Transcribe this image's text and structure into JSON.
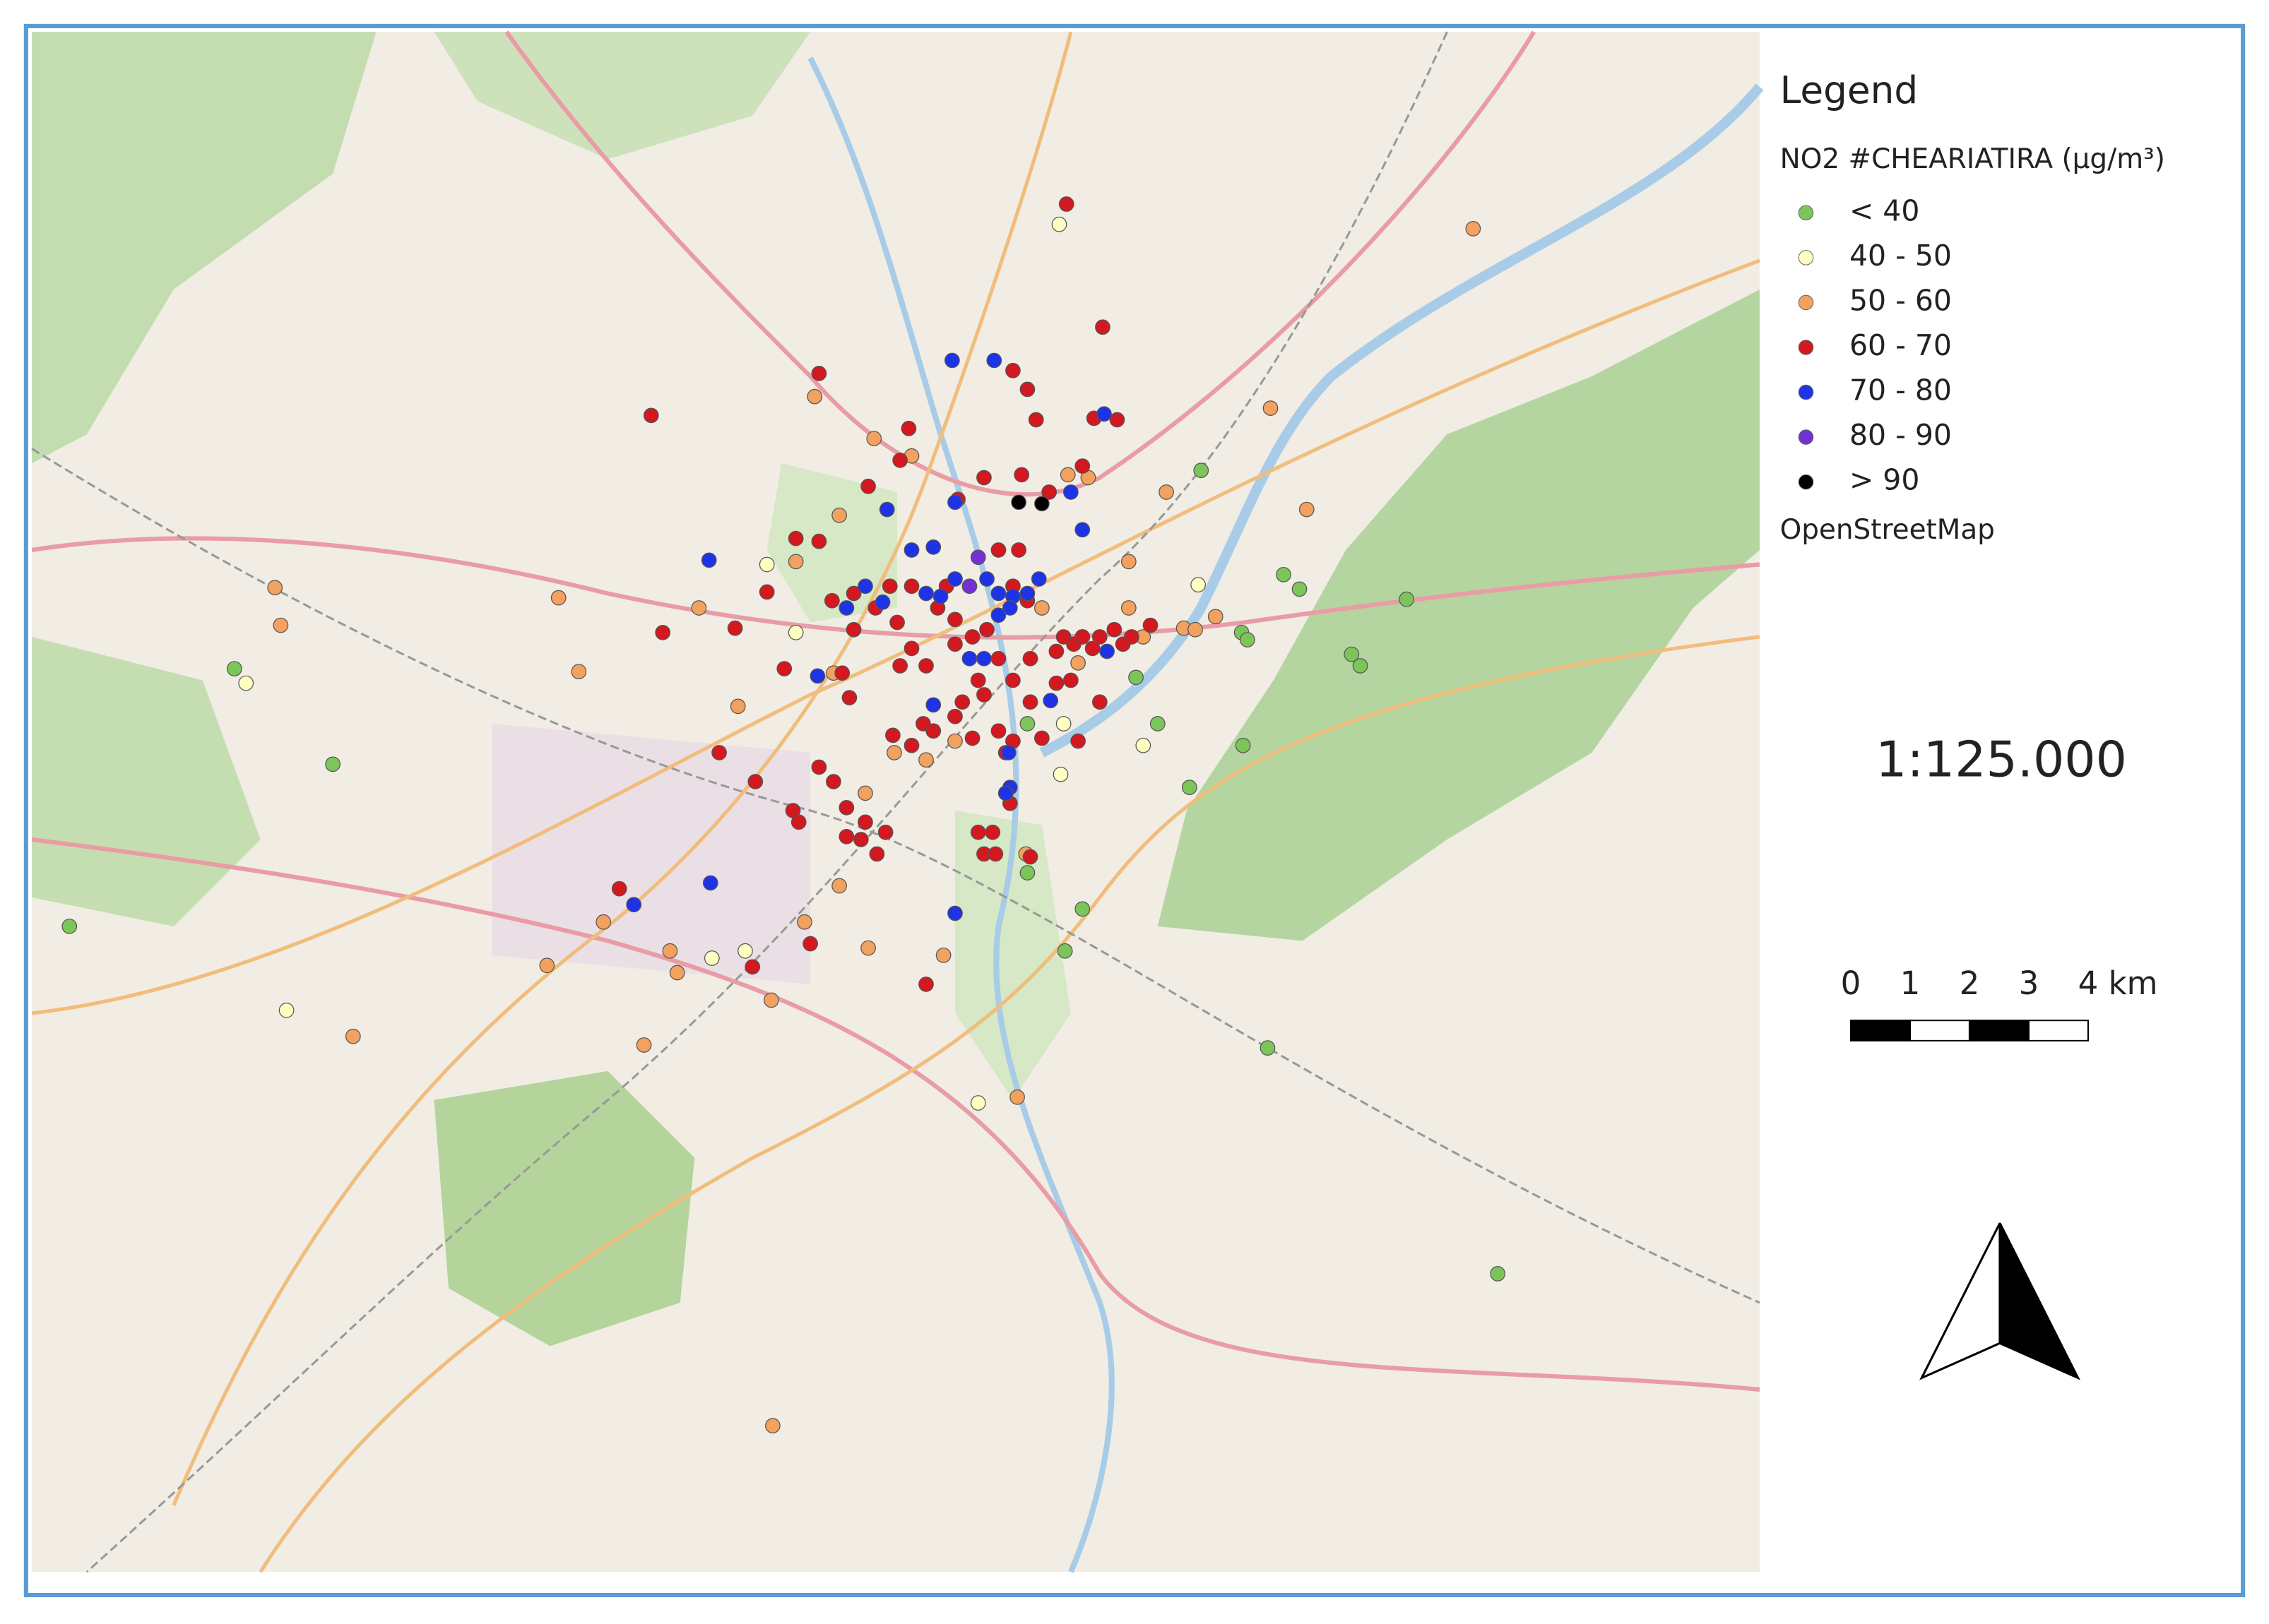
{
  "legend": {
    "title": "Legend",
    "layer_title": "NO2 #CHEARIATIRA (µg/m³)",
    "classes": [
      {
        "label": "< 40",
        "color": "#7cc55a"
      },
      {
        "label": "40 - 50",
        "color": "#ffffc2"
      },
      {
        "label": "50 - 60",
        "color": "#f2a15e"
      },
      {
        "label": "60 - 70",
        "color": "#d3181f"
      },
      {
        "label": "70 - 80",
        "color": "#1f33e6"
      },
      {
        "label": "80 - 90",
        "color": "#7431d2"
      },
      {
        "label": "> 90",
        "color": "#000000"
      }
    ],
    "basemap": "OpenStreetMap"
  },
  "scale": {
    "text": "1:125.000",
    "bar_labels": [
      "0",
      "1",
      "2",
      "3",
      "4 km"
    ]
  }
}
